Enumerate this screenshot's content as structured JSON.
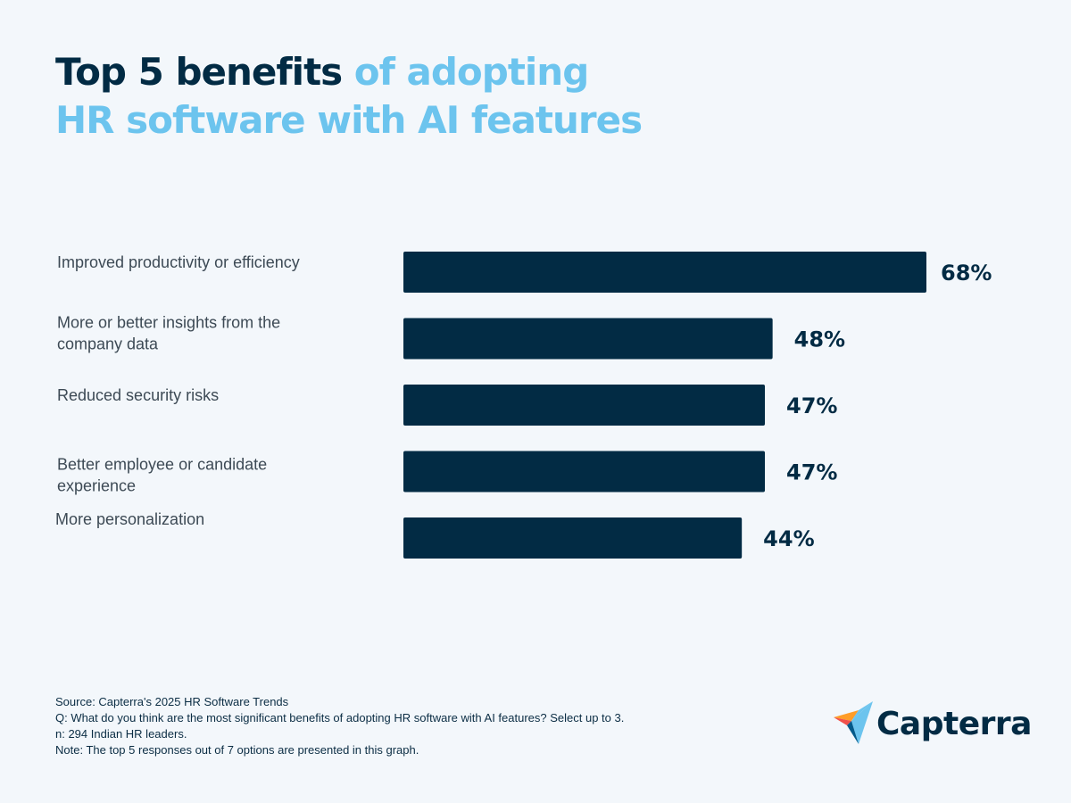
{
  "title": {
    "part_dark": "Top 5 benefits",
    "part_light_1": " of adopting",
    "part_light_2": "HR software with AI features"
  },
  "colors": {
    "bar": "#022b44",
    "title_dark": "#022b44",
    "title_light": "#6cc4ee",
    "background": "#f3f7fb"
  },
  "chart_data": {
    "type": "bar",
    "orientation": "horizontal",
    "categories": [
      [
        "Improved productivity or efficiency"
      ],
      [
        "More or better insights from the",
        "company data"
      ],
      [
        "Reduced security risks"
      ],
      [
        "Better employee or candidate",
        "experience"
      ],
      [
        "More personalization"
      ]
    ],
    "values": [
      68,
      48,
      47,
      47,
      44
    ],
    "value_labels": [
      "68%",
      "48%",
      "47%",
      "47%",
      "44%"
    ],
    "unit": "%",
    "xlim": [
      0,
      68
    ],
    "grid": false,
    "axes_visible": false
  },
  "footer": {
    "source": "Source: Capterra's 2025 HR Software Trends",
    "question": "Q: What do you think are the most significant benefits of adopting HR software with AI features? Select up to 3.",
    "n": "n: 294 Indian HR leaders.",
    "note": "Note: The top 5 responses out of 7 options are presented in this graph."
  },
  "logo": {
    "text": "Capterra",
    "icon": "capterra-arrow-icon"
  }
}
